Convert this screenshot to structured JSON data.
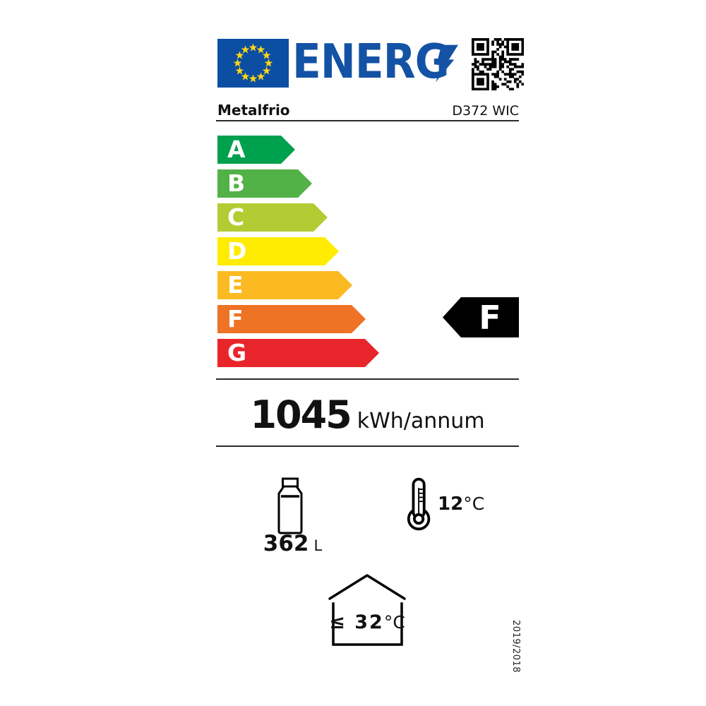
{
  "header": {
    "logo_text": "ENERG",
    "brand": "Metalfrio",
    "model": "D372 WIC"
  },
  "rating_scale": [
    {
      "grade": "A",
      "color": "#00A14E"
    },
    {
      "grade": "B",
      "color": "#52B147"
    },
    {
      "grade": "C",
      "color": "#B3CC33"
    },
    {
      "grade": "D",
      "color": "#FFEC00"
    },
    {
      "grade": "E",
      "color": "#FBBA21"
    },
    {
      "grade": "F",
      "color": "#EE7325"
    },
    {
      "grade": "G",
      "color": "#E9252C"
    }
  ],
  "rating": {
    "grade": "F"
  },
  "energy": {
    "value": "1045",
    "unit": "kWh/annum"
  },
  "metrics": {
    "volume": {
      "value": "362",
      "unit": "L"
    },
    "temperature": {
      "value": "12",
      "unit": "°C"
    },
    "ambient": {
      "value": "≤ 32",
      "unit": "°C"
    }
  },
  "footer": {
    "regulation": "2019/2018"
  },
  "colors": {
    "eu_flag_blue": "#0B4EA2",
    "eu_star_yellow": "#FFD617",
    "logo_blue": "#1352A5",
    "indicator_black": "#000000"
  }
}
